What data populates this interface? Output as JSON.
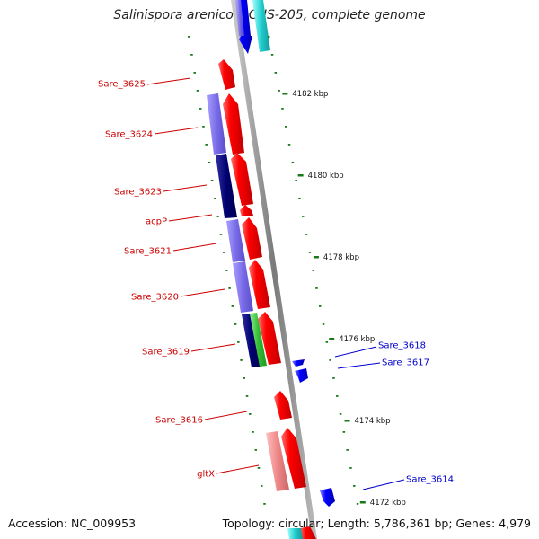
{
  "title": "Salinispora arenicola CNS-205, complete genome",
  "footer": {
    "accession": "Accession: NC_009953",
    "topology": "Topology: circular; Length: 5,786,361 bp; Genes: 4,979"
  },
  "colors": {
    "forward_cds": "#ff0000",
    "reverse_cds": "#0000ff",
    "forward_label": "#cc0000",
    "reverse_label": "#0000cc",
    "ruler": "#1a7a1a",
    "backbone": "#888888"
  },
  "ruler_labels": [
    "4182 kbp",
    "4180 kbp",
    "4178 kbp",
    "4176 kbp",
    "4174 kbp",
    "4172 kbp"
  ],
  "forward_labels": [
    "Sare_3625",
    "Sare_3624",
    "Sare_3623",
    "acpP",
    "Sare_3621",
    "Sare_3620",
    "Sare_3619",
    "Sare_3616",
    "gltX"
  ],
  "reverse_labels": [
    "Sare_3618",
    "Sare_3617",
    "Sare_3614"
  ]
}
